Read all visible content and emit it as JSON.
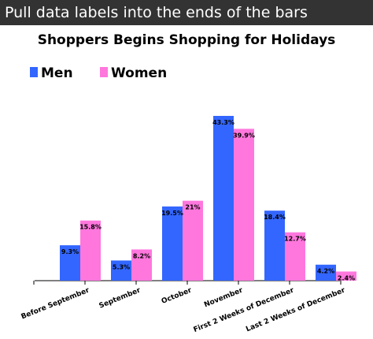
{
  "banner": {
    "text": "Pull data labels into the ends of the bars"
  },
  "chart_data": {
    "type": "bar",
    "title": "Shoppers Begins Shopping for Holidays",
    "categories": [
      "Before September",
      "September",
      "October",
      "November",
      "First 2 Weeks of December",
      "Last 2 Weeks of December"
    ],
    "series": [
      {
        "name": "Men",
        "color": "#3366ff",
        "values": [
          9.3,
          5.3,
          19.5,
          43.3,
          18.4,
          4.2
        ],
        "labels": [
          "9.3%",
          "5.3%",
          "19.5%",
          "43.3%",
          "18.4%",
          "4.2%"
        ]
      },
      {
        "name": "Women",
        "color": "#ff77dd",
        "values": [
          15.8,
          8.2,
          21,
          39.9,
          12.7,
          2.4
        ],
        "labels": [
          "15.8%",
          "8.2%",
          "21%",
          "39.9%",
          "12.7%",
          "2.4%"
        ]
      }
    ],
    "ylim": [
      0,
      45
    ],
    "legend_position": "top-left",
    "grid": false,
    "data_labels": "inside-end"
  }
}
